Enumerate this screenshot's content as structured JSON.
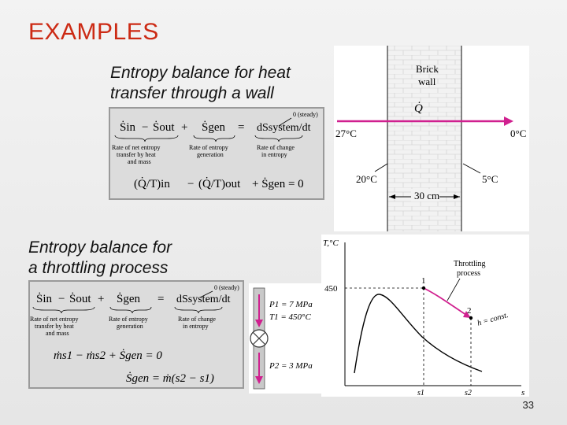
{
  "slide": {
    "title": "EXAMPLES",
    "page_number": "33"
  },
  "wall_example": {
    "caption_line1": "Entropy balance for heat",
    "caption_line2": "transfer through a wall",
    "equation": {
      "s_in": "Ṡin",
      "minus": "−",
      "s_out": "Ṡout",
      "plus": "+",
      "s_gen": "Ṡgen",
      "equals": "=",
      "ds_system": "dSsystem/dt",
      "steady_note": "0 (steady)",
      "label_net_transfer_1": "Rate of net entropy",
      "label_net_transfer_2": "transfer by heat",
      "label_net_transfer_3": "and mass",
      "label_generation_1": "Rate of entropy",
      "label_generation_2": "generation",
      "label_change_1": "Rate of change",
      "label_change_2": "in entropy",
      "second_line_in": "(Q̇/T)in",
      "second_line_out": "(Q̇/T)out",
      "second_line_rest": "+ Ṡgen = 0"
    },
    "figure": {
      "wall_label_1": "Brick",
      "wall_label_2": "wall",
      "heat_label": "Q̇",
      "temp_outside_left": "27°C",
      "temp_outside_right": "0°C",
      "temp_surface_left": "20°C",
      "temp_surface_right": "5°C",
      "thickness": "30 cm"
    }
  },
  "throttling_example": {
    "caption_line1": "Entropy balance for",
    "caption_line2": "a throttling process",
    "equation": {
      "s_in": "Ṡin",
      "minus": "−",
      "s_out": "Ṡout",
      "plus": "+",
      "s_gen": "Ṡgen",
      "equals": "=",
      "ds_system": "dSsystem/dt",
      "steady_note": "0 (steady)",
      "label_net_transfer_1": "Rate of net entropy",
      "label_net_transfer_2": "transfer by heat",
      "label_net_transfer_3": "and mass",
      "label_generation_1": "Rate of entropy",
      "label_generation_2": "generation",
      "label_change_1": "Rate of change",
      "label_change_2": "in entropy",
      "line2": "ṁs1 − ṁs2 + Ṡgen = 0",
      "line3": "Ṡgen = ṁ(s2 − s1)"
    },
    "valve": {
      "p1": "P1 = 7 MPa",
      "t1": "T1 = 450°C",
      "p2": "P2 = 3 MPa"
    },
    "ts_diagram": {
      "y_axis_label": "T,°C",
      "x_axis_label": "s",
      "tick_450": "450",
      "tick_s1": "s1",
      "tick_s2": "s2",
      "point_1": "1",
      "point_2": "2",
      "process_label_1": "Throttling",
      "process_label_2": "process",
      "enthalpy_label": "h = const.",
      "process_color": "#d0208f"
    },
    "arrow_color": "#d0208f"
  }
}
